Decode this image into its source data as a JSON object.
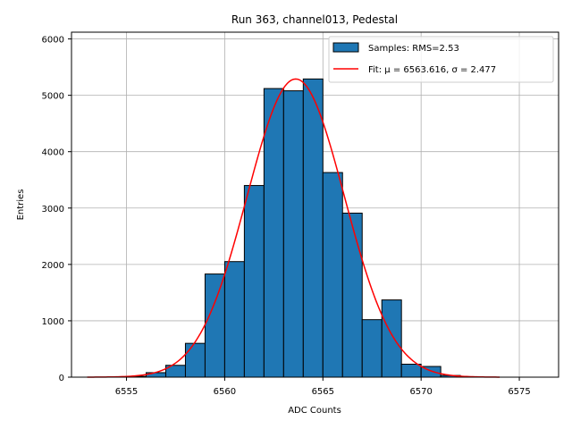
{
  "chart_data": {
    "type": "bar",
    "title": "Run 363, channel013, Pedestal",
    "xlabel": "ADC Counts",
    "ylabel": "Entries",
    "xlim": [
      6552.2,
      6577.0
    ],
    "ylim": [
      0,
      6120
    ],
    "xticks": [
      6555,
      6560,
      6565,
      6570,
      6575
    ],
    "yticks": [
      0,
      1000,
      2000,
      3000,
      4000,
      5000,
      6000
    ],
    "grid": true,
    "legend_position": "top-right",
    "bin_width": 1.0,
    "histogram": {
      "name": "Samples: RMS=2.53",
      "color": "#1f77b4",
      "edgecolor": "#000000",
      "bins": [
        {
          "x0": 6555.0,
          "count": 15
        },
        {
          "x0": 6556.0,
          "count": 80
        },
        {
          "x0": 6557.0,
          "count": 210
        },
        {
          "x0": 6558.0,
          "count": 600
        },
        {
          "x0": 6559.0,
          "count": 1830
        },
        {
          "x0": 6560.0,
          "count": 2050
        },
        {
          "x0": 6561.0,
          "count": 3400
        },
        {
          "x0": 6562.0,
          "count": 5120
        },
        {
          "x0": 6563.0,
          "count": 5080
        },
        {
          "x0": 6564.0,
          "count": 5290
        },
        {
          "x0": 6565.0,
          "count": 3630
        },
        {
          "x0": 6566.0,
          "count": 2910
        },
        {
          "x0": 6567.0,
          "count": 1020
        },
        {
          "x0": 6568.0,
          "count": 1370
        },
        {
          "x0": 6569.0,
          "count": 230
        },
        {
          "x0": 6570.0,
          "count": 190
        },
        {
          "x0": 6571.0,
          "count": 30
        }
      ]
    },
    "fit": {
      "label": "Fit: μ = 6563.616, σ = 2.477",
      "mu": 6563.616,
      "sigma": 2.477,
      "amplitude": 5290,
      "x_range": [
        6553.0,
        6574.0
      ],
      "color": "#ff0000"
    }
  }
}
